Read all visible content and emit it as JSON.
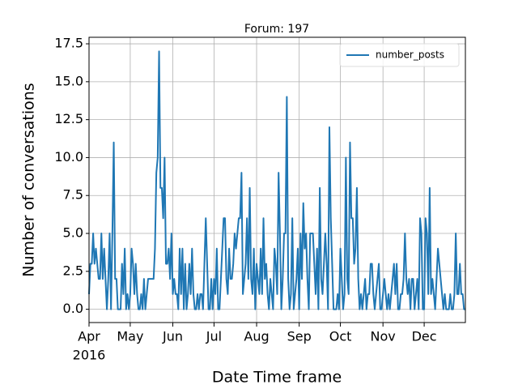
{
  "chart_data": {
    "type": "line",
    "title": "Forum: 197",
    "x_label": "Date Time frame",
    "y_label": "Number of conversations",
    "x_year_label": "2016",
    "categories": [
      "Apr",
      null,
      null,
      null,
      null,
      null,
      null,
      null,
      null,
      null,
      null,
      null,
      null,
      null,
      null,
      null,
      null,
      null,
      null,
      null,
      null,
      null,
      null,
      null,
      null,
      null,
      null,
      null,
      null,
      null,
      "May",
      null,
      null,
      null,
      null,
      null,
      null,
      null,
      null,
      null,
      null,
      null,
      null,
      null,
      null,
      null,
      null,
      null,
      null,
      null,
      null,
      null,
      null,
      null,
      null,
      null,
      null,
      null,
      null,
      null,
      null,
      "Jun",
      null,
      null,
      null,
      null,
      null,
      null,
      null,
      null,
      null,
      null,
      null,
      null,
      null,
      null,
      null,
      null,
      null,
      null,
      null,
      null,
      null,
      null,
      null,
      null,
      null,
      null,
      null,
      null,
      null,
      "Jul",
      null,
      null,
      null,
      null,
      null,
      null,
      null,
      null,
      null,
      null,
      null,
      null,
      null,
      null,
      null,
      null,
      null,
      null,
      null,
      null,
      null,
      null,
      null,
      null,
      null,
      null,
      null,
      null,
      null,
      null,
      "Aug",
      null,
      null,
      null,
      null,
      null,
      null,
      null,
      null,
      null,
      null,
      null,
      null,
      null,
      null,
      null,
      null,
      null,
      null,
      null,
      null,
      null,
      null,
      null,
      null,
      null,
      null,
      null,
      null,
      null,
      null,
      "Sep",
      null,
      null,
      null,
      null,
      null,
      null,
      null,
      null,
      null,
      null,
      null,
      null,
      null,
      null,
      null,
      null,
      null,
      null,
      null,
      null,
      null,
      null,
      null,
      null,
      null,
      null,
      null,
      null,
      null,
      "Oct",
      null,
      null,
      null,
      null,
      null,
      null,
      null,
      null,
      null,
      null,
      null,
      null,
      null,
      null,
      null,
      null,
      null,
      null,
      null,
      null,
      null,
      null,
      null,
      null,
      null,
      null,
      null,
      null,
      null,
      null,
      "Nov",
      null,
      null,
      null,
      null,
      null,
      null,
      null,
      null,
      null,
      null,
      null,
      null,
      null,
      null,
      null,
      null,
      null,
      null,
      null,
      null,
      null,
      null,
      null,
      null,
      null,
      null,
      null,
      null,
      null,
      "Dec",
      null,
      null,
      null,
      null,
      null,
      null,
      null,
      null,
      null,
      null,
      null,
      null,
      null,
      null,
      null,
      null,
      null,
      null,
      null,
      null,
      null,
      null,
      null,
      null,
      null,
      null,
      null,
      null,
      null,
      null
    ],
    "series": [
      {
        "name": "number_posts",
        "color": "#1f77b4",
        "values": [
          1,
          3,
          3,
          5,
          3,
          4,
          3,
          2,
          2,
          5,
          2,
          4,
          2,
          0,
          2,
          5,
          0,
          5,
          11,
          2,
          2,
          0,
          0,
          0,
          3,
          1,
          4,
          0,
          1,
          0,
          1,
          4,
          3,
          1,
          3,
          1,
          0,
          0,
          1,
          0,
          2,
          0,
          1,
          2,
          2,
          2,
          2,
          2,
          4,
          9,
          10,
          17,
          8,
          8,
          6,
          10,
          3,
          3,
          4,
          2,
          5,
          1,
          2,
          1,
          1,
          0,
          4,
          1,
          4,
          0,
          3,
          0,
          1,
          3,
          1,
          4,
          1,
          0,
          0,
          1,
          0,
          1,
          1,
          0,
          3,
          6,
          3,
          0,
          0,
          2,
          0,
          2,
          1,
          4,
          0,
          0,
          2,
          4,
          6,
          6,
          2,
          1,
          4,
          2,
          2,
          3,
          5,
          4,
          5,
          6,
          6,
          9,
          1,
          2,
          3,
          6,
          2,
          8,
          2,
          1,
          4,
          0,
          3,
          2,
          1,
          4,
          1,
          6,
          2,
          3,
          1,
          0,
          2,
          1,
          0,
          4,
          3,
          1,
          9,
          5,
          0,
          2,
          5,
          5,
          14,
          2,
          0,
          1,
          6,
          0,
          1,
          2,
          4,
          0,
          5,
          2,
          7,
          4,
          5,
          2,
          0,
          5,
          5,
          5,
          3,
          1,
          4,
          0,
          8,
          2,
          1,
          3,
          5,
          3,
          0,
          12,
          6,
          3,
          0,
          0,
          0,
          1,
          0,
          4,
          2,
          0,
          1,
          10,
          2,
          1,
          11,
          6,
          6,
          3,
          4,
          8,
          2,
          0,
          1,
          0,
          1,
          2,
          0,
          1,
          1,
          3,
          3,
          1,
          0,
          1,
          2,
          3,
          0,
          0,
          1,
          2,
          1,
          0,
          1,
          0,
          1,
          2,
          3,
          1,
          3,
          0,
          0,
          1,
          1,
          2,
          5,
          2,
          1,
          2,
          0,
          2,
          2,
          0,
          1,
          2,
          0,
          6,
          5,
          0,
          0,
          6,
          5,
          1,
          8,
          1,
          2,
          1,
          0,
          2,
          4,
          3,
          2,
          1,
          0,
          1,
          0,
          0,
          0,
          1,
          0,
          0,
          1,
          5,
          1,
          1,
          3,
          1,
          1,
          0,
          0
        ]
      }
    ],
    "ylim": [
      -0.875,
      17.93
    ],
    "yticks": [
      {
        "value": 0,
        "label": "0.0"
      },
      2.5,
      {
        "value": 5,
        "label": "5.0"
      },
      7.5,
      {
        "value": 10,
        "label": "10.0"
      },
      12.5,
      {
        "value": 15,
        "label": "15.0"
      },
      17.5
    ],
    "grid": true,
    "legend": "upper right"
  }
}
